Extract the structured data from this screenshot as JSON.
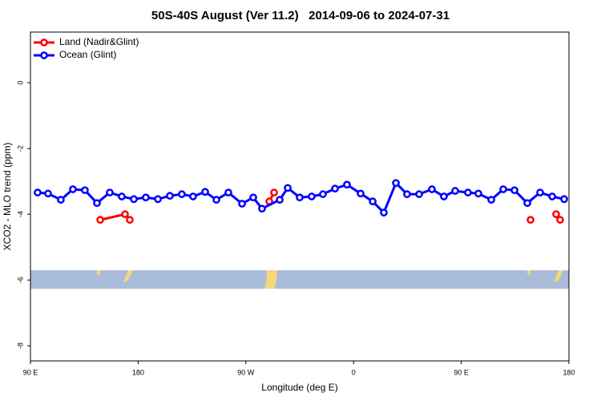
{
  "chart_data": {
    "type": "line",
    "title": "50S-40S August (Ver 11.2)   2014-09-06 to 2024-07-31",
    "x_label": "Longitude (deg E)",
    "y_label": "XCO2 - MLO trend (ppm)",
    "xlim": [
      90,
      540
    ],
    "xticks": [
      {
        "value": 90,
        "label": "90 E"
      },
      180,
      {
        "value": 270,
        "label": "90 W"
      },
      {
        "value": 360,
        "label": "0"
      },
      {
        "value": 450,
        "label": "90 E"
      },
      {
        "value": 540,
        "label": "180"
      }
    ],
    "ylim": [
      -8.46,
      1.54
    ],
    "yticks": [
      0,
      -2,
      -4,
      -6,
      -8
    ],
    "legend": "top-left",
    "series": [
      {
        "name": "Land (Nadir&Glint)",
        "color": "#ff0000",
        "x": [
          148.3,
          169,
          173,
          null,
          289.6,
          293.6,
          null,
          507.9,
          null,
          529.3,
          532.6
        ],
        "values": [
          -4.17,
          -4.0,
          -4.17,
          null,
          -3.61,
          -3.34,
          null,
          -4.17,
          null,
          -4.0,
          -4.17
        ]
      },
      {
        "name": "Ocean (Glint)",
        "color": "#0000ff",
        "x": [
          96,
          104.7,
          115.4,
          125.5,
          135.5,
          145.6,
          156.3,
          166.3,
          176.4,
          186.4,
          196.5,
          206.5,
          216.5,
          225.9,
          236,
          245.4,
          255.4,
          266.8,
          276.2,
          283.5,
          298.3,
          305,
          315,
          325,
          334.4,
          344.5,
          354.5,
          365.9,
          376,
          385.3,
          395.4,
          404.7,
          414.8,
          425.5,
          435.5,
          444.9,
          455.6,
          464.3,
          475.1,
          485.1,
          494.5,
          505.2,
          515.9,
          526,
          536
        ],
        "values": [
          -3.34,
          -3.37,
          -3.56,
          -3.24,
          -3.27,
          -3.66,
          -3.34,
          -3.46,
          -3.54,
          -3.49,
          -3.54,
          -3.44,
          -3.39,
          -3.46,
          -3.32,
          -3.56,
          -3.34,
          -3.68,
          -3.49,
          -3.83,
          -3.56,
          -3.2,
          -3.49,
          -3.46,
          -3.39,
          -3.22,
          -3.1,
          -3.37,
          -3.61,
          -3.95,
          -3.05,
          -3.39,
          -3.39,
          -3.24,
          -3.46,
          -3.29,
          -3.34,
          -3.37,
          -3.56,
          -3.24,
          -3.27,
          -3.66,
          -3.34,
          -3.46,
          -3.54
        ]
      }
    ]
  }
}
